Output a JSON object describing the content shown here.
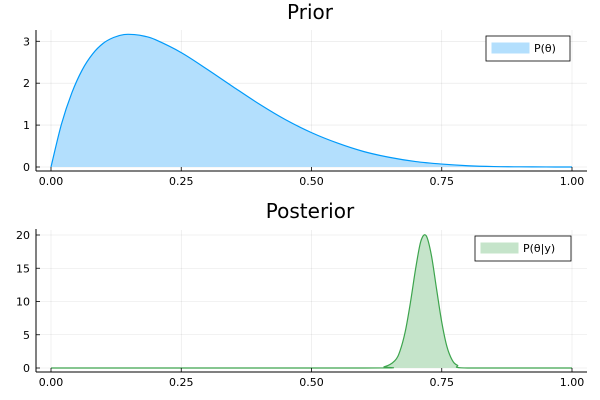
{
  "chart_data": [
    {
      "type": "area",
      "title": "Prior",
      "xlabel": "",
      "ylabel": "",
      "xlim": [
        0,
        1
      ],
      "ylim": [
        0,
        3.15
      ],
      "x_ticks": [
        0,
        0.25,
        0.5,
        0.75,
        1
      ],
      "x_tick_labels": [
        "0.00",
        "0.25",
        "0.50",
        "0.75",
        "1.00"
      ],
      "y_ticks": [
        0,
        1,
        2,
        3
      ],
      "y_tick_labels": [
        "0",
        "1",
        "2",
        "3"
      ],
      "grid": true,
      "legend_position": "top-right",
      "series": [
        {
          "name": "P(θ)",
          "line_color": "#009AFA",
          "fill_color": "#B3DFFD",
          "x": [
            0,
            0.02,
            0.04,
            0.06,
            0.08,
            0.1,
            0.12,
            0.14,
            0.16,
            0.18,
            0.2,
            0.25,
            0.3,
            0.35,
            0.4,
            0.45,
            0.5,
            0.55,
            0.6,
            0.65,
            0.7,
            0.75,
            0.8,
            0.85,
            0.9,
            0.95,
            1.0
          ],
          "y": [
            0,
            1.02,
            1.77,
            2.32,
            2.7,
            2.95,
            3.09,
            3.16,
            3.16,
            3.12,
            3.04,
            2.73,
            2.33,
            1.91,
            1.5,
            1.13,
            0.82,
            0.57,
            0.37,
            0.23,
            0.13,
            0.07,
            0.03,
            0.01,
            0.004,
            0.001,
            0
          ]
        }
      ]
    },
    {
      "type": "area",
      "title": "Posterior",
      "xlabel": "",
      "ylabel": "",
      "xlim": [
        0,
        1
      ],
      "ylim": [
        0,
        20
      ],
      "x_ticks": [
        0,
        0.25,
        0.5,
        0.75,
        1
      ],
      "x_tick_labels": [
        "0.00",
        "0.25",
        "0.50",
        "0.75",
        "1.00"
      ],
      "y_ticks": [
        0,
        5,
        10,
        15,
        20
      ],
      "y_tick_labels": [
        "0",
        "5",
        "10",
        "15",
        "20"
      ],
      "grid": true,
      "legend_position": "top-right",
      "series": [
        {
          "name": "P(θ|y)",
          "line_color": "#3DA44D",
          "fill_color": "#C5E4CA",
          "x": [
            0,
            0.6,
            0.64,
            0.66,
            0.67,
            0.68,
            0.69,
            0.7,
            0.71,
            0.72,
            0.73,
            0.74,
            0.75,
            0.76,
            0.77,
            0.78,
            0.8,
            1.0
          ],
          "y": [
            0,
            0,
            0.2,
            1.1,
            2.6,
            5.5,
            9.9,
            15.0,
            19.1,
            19.9,
            17.0,
            11.9,
            6.9,
            3.2,
            1.2,
            0.4,
            0,
            0
          ]
        }
      ]
    }
  ]
}
